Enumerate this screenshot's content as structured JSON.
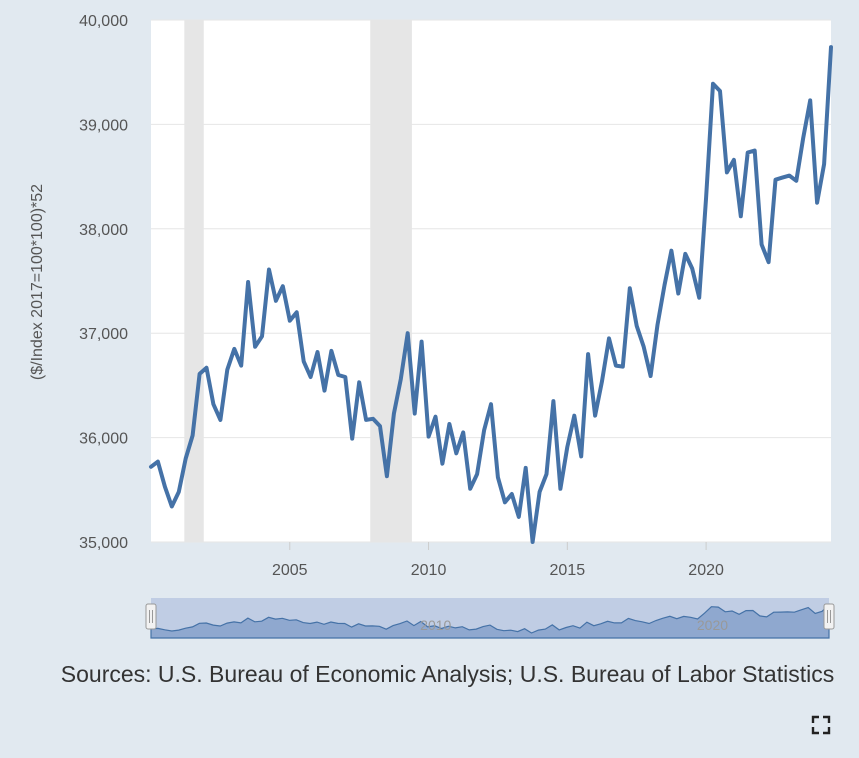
{
  "chart_data": {
    "type": "line",
    "ylabel": "($/Index 2017=100*100)*52",
    "xlabel": "",
    "ylim": [
      35000,
      40000
    ],
    "xlim": [
      2000.0,
      2024.5
    ],
    "yticks": [
      35000,
      36000,
      37000,
      38000,
      39000,
      40000
    ],
    "ytick_labels": [
      "35,000",
      "36,000",
      "37,000",
      "38,000",
      "39,000",
      "40,000"
    ],
    "xticks": [
      2005,
      2010,
      2015,
      2020
    ],
    "xtick_labels": [
      "2005",
      "2010",
      "2015",
      "2020"
    ],
    "grid": "horizontal",
    "recessions": [
      [
        2001.2,
        2001.9
      ],
      [
        2007.9,
        2009.4
      ]
    ],
    "navigator_labels": [
      "2010",
      "2020"
    ],
    "series": [
      {
        "color": "#4572a7",
        "x_start": 2000.0,
        "x_step": 0.25,
        "values": [
          35720,
          35770,
          35530,
          35340,
          35480,
          35800,
          36020,
          36610,
          36670,
          36320,
          36170,
          36650,
          36850,
          36690,
          37490,
          36870,
          36970,
          37610,
          37310,
          37450,
          37120,
          37200,
          36730,
          36580,
          36820,
          36450,
          36830,
          36600,
          36580,
          35990,
          36530,
          36170,
          36180,
          36110,
          35630,
          36230,
          36560,
          37000,
          36230,
          36920,
          36010,
          36200,
          35750,
          36130,
          35850,
          36050,
          35510,
          35650,
          36070,
          36320,
          35620,
          35380,
          35460,
          35240,
          35710,
          35000,
          35480,
          35650,
          36350,
          35510,
          35910,
          36210,
          35820,
          36800,
          36210,
          36540,
          36950,
          36690,
          36680,
          37430,
          37070,
          36870,
          36590,
          37080,
          37460,
          37790,
          37380,
          37760,
          37620,
          37340,
          38300,
          39390,
          39320,
          38540,
          38660,
          38120,
          38730,
          38750,
          37850,
          37680,
          38470,
          38490,
          38510,
          38460,
          38870,
          39230,
          38250,
          38620,
          39740
        ]
      }
    ]
  },
  "source_note": "Sources: U.S. Bureau of Economic Analysis; U.S. Bureau of Labor Statistics",
  "icons": {
    "fullscreen": "fullscreen-icon",
    "navigator_handle": "grip-handle-icon"
  },
  "colors": {
    "background": "#e1e9f0",
    "plot_background": "#ffffff",
    "recession_band": "#e6e6e6",
    "line": "#4572a7",
    "navigator_mask": "#c0cde4",
    "navigator_fill": "#8fa8cf",
    "axis_text": "#555555"
  }
}
